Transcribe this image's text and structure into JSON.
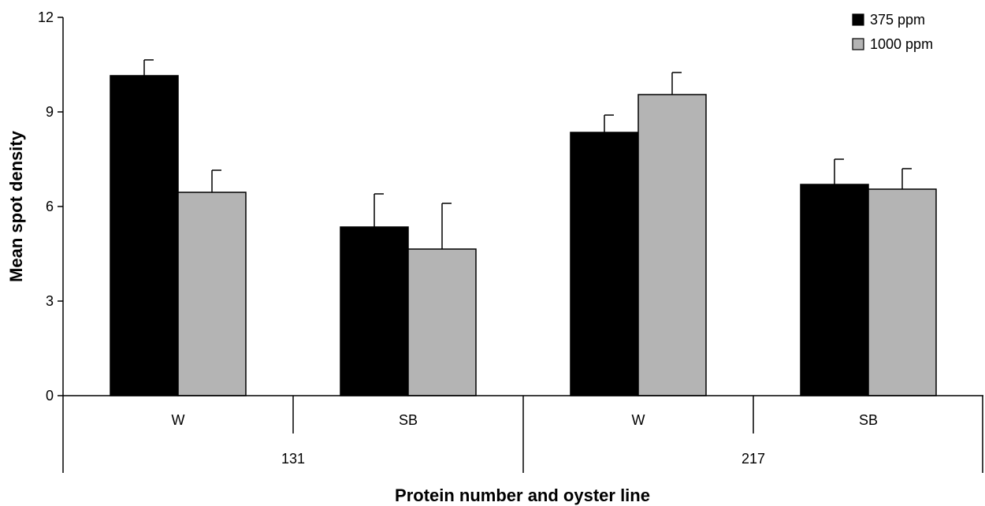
{
  "chart_data": {
    "type": "bar",
    "ylabel": "Mean spot density",
    "xlabel": "Protein number and oyster line",
    "ylim": [
      0,
      12
    ],
    "yticks": [
      0,
      3,
      6,
      9,
      12
    ],
    "groups": [
      {
        "label": "131",
        "categories": [
          "W",
          "SB"
        ]
      },
      {
        "label": "217",
        "categories": [
          "W",
          "SB"
        ]
      }
    ],
    "categories": [
      "W",
      "SB",
      "W",
      "SB"
    ],
    "series": [
      {
        "name": "375 ppm",
        "color": "#000000",
        "values": [
          10.15,
          5.35,
          8.35,
          6.7
        ],
        "errors": [
          0.5,
          1.05,
          0.55,
          0.8
        ]
      },
      {
        "name": "1000 ppm",
        "color": "#b4b4b4",
        "values": [
          6.45,
          4.65,
          9.55,
          6.55
        ],
        "errors": [
          0.7,
          1.45,
          0.7,
          0.65
        ]
      }
    ],
    "legend_position": "top-right",
    "grid": false
  }
}
